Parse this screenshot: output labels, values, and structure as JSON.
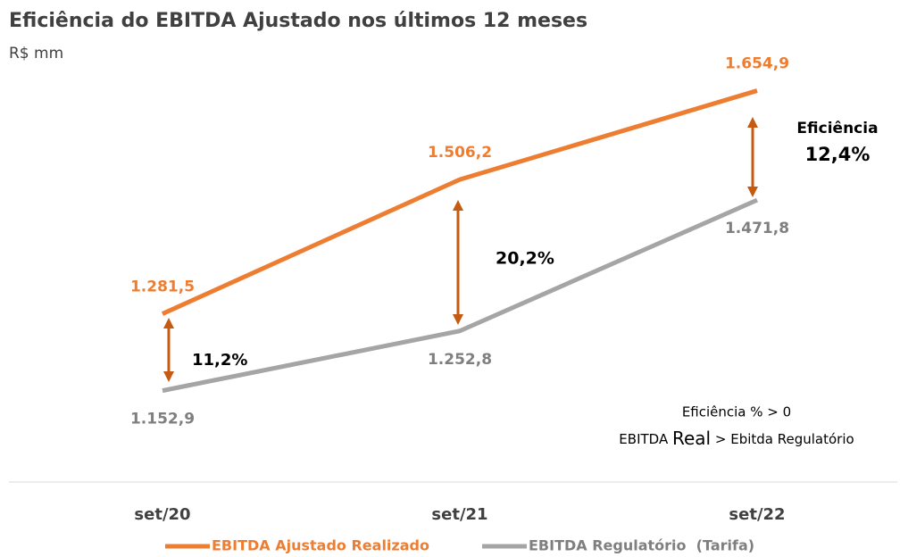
{
  "chart_data": {
    "type": "line",
    "title": "Eficiência do EBITDA Ajustado nos últimos 12 meses",
    "subtitle": "R$ mm",
    "categories": [
      "set/20",
      "set/21",
      "set/22"
    ],
    "ylim": [
      1000,
      1800
    ],
    "series": [
      {
        "name": "EBITDA Ajustado Realizado",
        "color": "#ed7d31",
        "values": [
          1281.5,
          1506.2,
          1654.9
        ],
        "value_labels": [
          "1.281,5",
          "1.506,2",
          "1.654,9"
        ]
      },
      {
        "name": "EBITDA Regulatório  (Tarifa)",
        "color": "#a5a5a5",
        "values": [
          1152.9,
          1252.8,
          1471.8
        ],
        "value_labels": [
          "1.152,9",
          "1.252,8",
          "1.471,8"
        ]
      }
    ],
    "annotations": [
      "11,2%",
      "20,2%",
      "Eficiência",
      "12,4%"
    ],
    "notes": [
      "Eficiência % > 0",
      [
        "EBITDA",
        "Real",
        "> Ebitda Regulatório"
      ]
    ]
  }
}
